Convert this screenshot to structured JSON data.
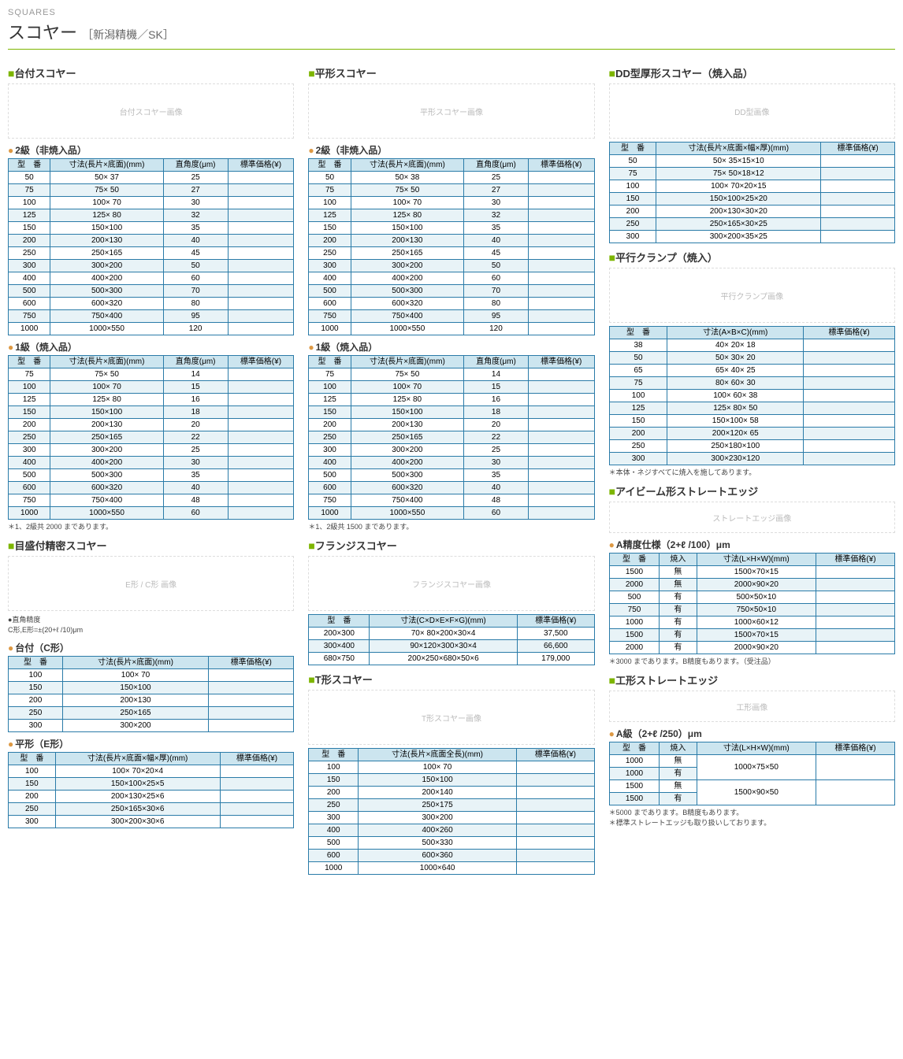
{
  "header": {
    "category": "SQUARES",
    "title": "スコヤー",
    "subtitle": "［新潟精機／SK］"
  },
  "col1": {
    "sec1": {
      "title": "台付スコヤー",
      "img": "台付スコヤー画像"
    },
    "t1": {
      "head": "2級（非焼入品）",
      "cols": [
        "型　番",
        "寸法(長片×底面)(mm)",
        "直角度(μm)",
        "標準価格(¥)"
      ],
      "rows": [
        [
          "50",
          "50× 37",
          "25",
          ""
        ],
        [
          "75",
          "75× 50",
          "27",
          ""
        ],
        [
          "100",
          "100× 70",
          "30",
          ""
        ],
        [
          "125",
          "125× 80",
          "32",
          ""
        ],
        [
          "150",
          "150×100",
          "35",
          ""
        ],
        [
          "200",
          "200×130",
          "40",
          ""
        ],
        [
          "250",
          "250×165",
          "45",
          ""
        ],
        [
          "300",
          "300×200",
          "50",
          ""
        ],
        [
          "400",
          "400×200",
          "60",
          ""
        ],
        [
          "500",
          "500×300",
          "70",
          ""
        ],
        [
          "600",
          "600×320",
          "80",
          ""
        ],
        [
          "750",
          "750×400",
          "95",
          ""
        ],
        [
          "1000",
          "1000×550",
          "120",
          ""
        ]
      ]
    },
    "t2": {
      "head": "1級（焼入品）",
      "cols": [
        "型　番",
        "寸法(長片×底面)(mm)",
        "直角度(μm)",
        "標準価格(¥)"
      ],
      "rows": [
        [
          "75",
          "75× 50",
          "14",
          ""
        ],
        [
          "100",
          "100× 70",
          "15",
          ""
        ],
        [
          "125",
          "125× 80",
          "16",
          ""
        ],
        [
          "150",
          "150×100",
          "18",
          ""
        ],
        [
          "200",
          "200×130",
          "20",
          ""
        ],
        [
          "250",
          "250×165",
          "22",
          ""
        ],
        [
          "300",
          "300×200",
          "25",
          ""
        ],
        [
          "400",
          "400×200",
          "30",
          ""
        ],
        [
          "500",
          "500×300",
          "35",
          ""
        ],
        [
          "600",
          "600×320",
          "40",
          ""
        ],
        [
          "750",
          "750×400",
          "48",
          ""
        ],
        [
          "1000",
          "1000×550",
          "60",
          ""
        ]
      ],
      "note": "＊1、2級共 2000 まであります。"
    },
    "sec2": {
      "title": "目盛付精密スコヤー",
      "img": "E形 / C形 画像",
      "note": "●直角精度\nC形,E形=±(20+ℓ /10)μm"
    },
    "t3": {
      "head": "台付（C形）",
      "cols": [
        "型　番",
        "寸法(長片×底面)(mm)",
        "標準価格(¥)"
      ],
      "rows": [
        [
          "100",
          "100× 70",
          ""
        ],
        [
          "150",
          "150×100",
          ""
        ],
        [
          "200",
          "200×130",
          ""
        ],
        [
          "250",
          "250×165",
          ""
        ],
        [
          "300",
          "300×200",
          ""
        ]
      ]
    },
    "t4": {
      "head": "平形（E形）",
      "cols": [
        "型　番",
        "寸法(長片×底面×幅×厚)(mm)",
        "標準価格(¥)"
      ],
      "rows": [
        [
          "100",
          "100× 70×20×4",
          ""
        ],
        [
          "150",
          "150×100×25×5",
          ""
        ],
        [
          "200",
          "200×130×25×6",
          ""
        ],
        [
          "250",
          "250×165×30×6",
          ""
        ],
        [
          "300",
          "300×200×30×6",
          ""
        ]
      ]
    }
  },
  "col2": {
    "sec1": {
      "title": "平形スコヤー",
      "img": "平形スコヤー画像"
    },
    "t1": {
      "head": "2級（非焼入品）",
      "cols": [
        "型　番",
        "寸法(長片×底面)(mm)",
        "直角度(μm)",
        "標準価格(¥)"
      ],
      "rows": [
        [
          "50",
          "50× 38",
          "25",
          ""
        ],
        [
          "75",
          "75× 50",
          "27",
          ""
        ],
        [
          "100",
          "100× 70",
          "30",
          ""
        ],
        [
          "125",
          "125× 80",
          "32",
          ""
        ],
        [
          "150",
          "150×100",
          "35",
          ""
        ],
        [
          "200",
          "200×130",
          "40",
          ""
        ],
        [
          "250",
          "250×165",
          "45",
          ""
        ],
        [
          "300",
          "300×200",
          "50",
          ""
        ],
        [
          "400",
          "400×200",
          "60",
          ""
        ],
        [
          "500",
          "500×300",
          "70",
          ""
        ],
        [
          "600",
          "600×320",
          "80",
          ""
        ],
        [
          "750",
          "750×400",
          "95",
          ""
        ],
        [
          "1000",
          "1000×550",
          "120",
          ""
        ]
      ]
    },
    "t2": {
      "head": "1級（焼入品）",
      "cols": [
        "型　番",
        "寸法(長片×底面)(mm)",
        "直角度(μm)",
        "標準価格(¥)"
      ],
      "rows": [
        [
          "75",
          "75× 50",
          "14",
          ""
        ],
        [
          "100",
          "100× 70",
          "15",
          ""
        ],
        [
          "125",
          "125× 80",
          "16",
          ""
        ],
        [
          "150",
          "150×100",
          "18",
          ""
        ],
        [
          "200",
          "200×130",
          "20",
          ""
        ],
        [
          "250",
          "250×165",
          "22",
          ""
        ],
        [
          "300",
          "300×200",
          "25",
          ""
        ],
        [
          "400",
          "400×200",
          "30",
          ""
        ],
        [
          "500",
          "500×300",
          "35",
          ""
        ],
        [
          "600",
          "600×320",
          "40",
          ""
        ],
        [
          "750",
          "750×400",
          "48",
          ""
        ],
        [
          "1000",
          "1000×550",
          "60",
          ""
        ]
      ],
      "note": "＊1、2級共 1500 まであります。"
    },
    "sec2": {
      "title": "フランジスコヤー",
      "img": "フランジスコヤー画像"
    },
    "t3": {
      "cols": [
        "型　番",
        "寸法(C×D×E×F×G)(mm)",
        "標準価格(¥)"
      ],
      "rows": [
        [
          "200×300",
          "70× 80×200×30×4",
          "37,500"
        ],
        [
          "300×400",
          "90×120×300×30×4",
          "66,600"
        ],
        [
          "680×750",
          "200×250×680×50×6",
          "179,000"
        ]
      ]
    },
    "sec3": {
      "title": "T形スコヤー",
      "img": "T形スコヤー画像"
    },
    "t4": {
      "cols": [
        "型　番",
        "寸法(長片×底面全長)(mm)",
        "標準価格(¥)"
      ],
      "rows": [
        [
          "100",
          "100× 70",
          ""
        ],
        [
          "150",
          "150×100",
          ""
        ],
        [
          "200",
          "200×140",
          ""
        ],
        [
          "250",
          "250×175",
          ""
        ],
        [
          "300",
          "300×200",
          ""
        ],
        [
          "400",
          "400×260",
          ""
        ],
        [
          "500",
          "500×330",
          ""
        ],
        [
          "600",
          "600×360",
          ""
        ],
        [
          "1000",
          "1000×640",
          ""
        ]
      ]
    }
  },
  "col3": {
    "sec1": {
      "title": "DD型厚形スコヤー（焼入品）",
      "img": "DD型画像"
    },
    "t1": {
      "cols": [
        "型　番",
        "寸法(長片×底面×幅×厚)(mm)",
        "標準価格(¥)"
      ],
      "rows": [
        [
          "50",
          "50× 35×15×10",
          ""
        ],
        [
          "75",
          "75× 50×18×12",
          ""
        ],
        [
          "100",
          "100× 70×20×15",
          ""
        ],
        [
          "150",
          "150×100×25×20",
          ""
        ],
        [
          "200",
          "200×130×30×20",
          ""
        ],
        [
          "250",
          "250×165×30×25",
          ""
        ],
        [
          "300",
          "300×200×35×25",
          ""
        ]
      ]
    },
    "sec2": {
      "title": "平行クランプ（焼入）",
      "img": "平行クランプ画像"
    },
    "t2": {
      "cols": [
        "型　番",
        "寸法(A×B×C)(mm)",
        "標準価格(¥)"
      ],
      "rows": [
        [
          "38",
          "40× 20× 18",
          ""
        ],
        [
          "50",
          "50× 30× 20",
          ""
        ],
        [
          "65",
          "65× 40× 25",
          ""
        ],
        [
          "75",
          "80× 60× 30",
          ""
        ],
        [
          "100",
          "100× 60× 38",
          ""
        ],
        [
          "125",
          "125× 80× 50",
          ""
        ],
        [
          "150",
          "150×100× 58",
          ""
        ],
        [
          "200",
          "200×120× 65",
          ""
        ],
        [
          "250",
          "250×180×100",
          ""
        ],
        [
          "300",
          "300×230×120",
          ""
        ]
      ],
      "note": "＊本体・ネジすべてに焼入を施してあります。"
    },
    "sec3": {
      "title": "アイビーム形ストレートエッジ",
      "img": "ストレートエッジ画像"
    },
    "t3": {
      "head": "A精度仕様（2+ℓ /100）μm",
      "cols": [
        "型　番",
        "焼入",
        "寸法(L×H×W)(mm)",
        "標準価格(¥)"
      ],
      "rows": [
        [
          "1500",
          "無",
          "1500×70×15",
          ""
        ],
        [
          "2000",
          "無",
          "2000×90×20",
          ""
        ],
        [
          "500",
          "有",
          "500×50×10",
          ""
        ],
        [
          "750",
          "有",
          "750×50×10",
          ""
        ],
        [
          "1000",
          "有",
          "1000×60×12",
          ""
        ],
        [
          "1500",
          "有",
          "1500×70×15",
          ""
        ],
        [
          "2000",
          "有",
          "2000×90×20",
          ""
        ]
      ],
      "note": "＊3000 まであります。B精度もあります。（受注品）"
    },
    "sec4": {
      "title": "工形ストレートエッジ",
      "img": "工形画像"
    },
    "t4": {
      "head": "A級（2+ℓ /250）μm",
      "cols": [
        "型　番",
        "焼入",
        "寸法(L×H×W)(mm)",
        "標準価格(¥)"
      ],
      "rows_merged": [
        {
          "cells": [
            "1000",
            "無"
          ],
          "merged_dim": "1000×75×50",
          "price": "",
          "rowspan": 2
        },
        {
          "cells": [
            "1000",
            "有"
          ]
        },
        {
          "cells": [
            "1500",
            "無"
          ],
          "merged_dim": "1500×90×50",
          "price": "",
          "rowspan": 2
        },
        {
          "cells": [
            "1500",
            "有"
          ]
        }
      ],
      "note": "＊5000 まであります。B精度もあります。\n＊標準ストレートエッジも取り扱いしております。"
    }
  }
}
